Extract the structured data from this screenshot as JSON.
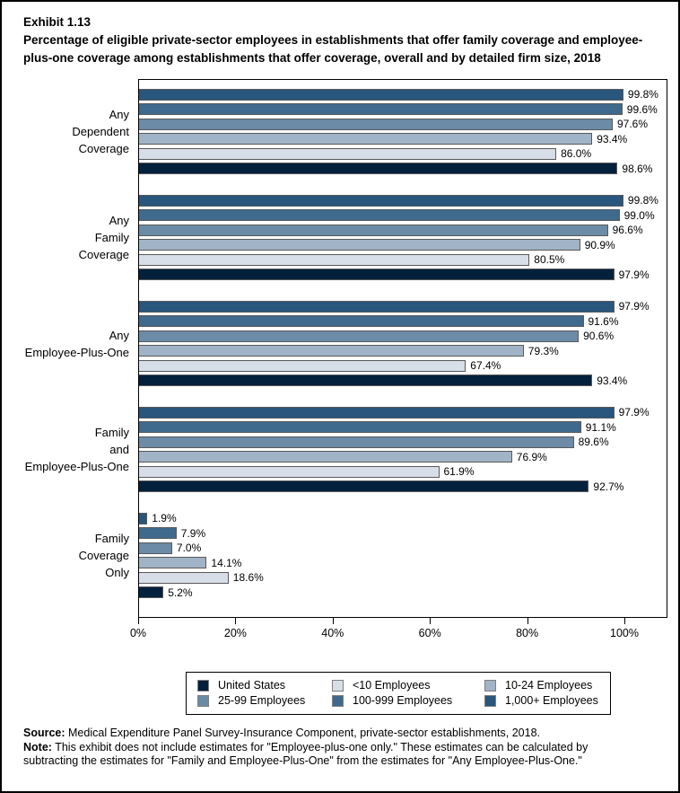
{
  "header": {
    "exhibit": "Exhibit 1.13",
    "title": "Percentage of eligible private-sector employees in establishments that offer family coverage and employee-plus-one coverage among establishments that offer coverage, overall and by detailed firm size, 2018"
  },
  "chart_data": {
    "type": "bar",
    "orientation": "horizontal",
    "title": "Percentage of eligible private-sector employees in establishments that offer family coverage and employee-plus-one coverage among establishments that offer coverage, overall and by detailed firm size, 2018",
    "categories": [
      "Any Dependent Coverage",
      "Any Family Coverage",
      "Any Employee-Plus-One",
      "Family and Employee-Plus-One",
      "Family Coverage Only"
    ],
    "category_label_lines": [
      [
        "Any",
        "Dependent",
        "Coverage"
      ],
      [
        "Any",
        "Family",
        "Coverage"
      ],
      [
        "Any",
        "Employee-Plus-One"
      ],
      [
        "Family",
        "and",
        "Employee-Plus-One"
      ],
      [
        "Family",
        "Coverage",
        "Only"
      ]
    ],
    "series": [
      {
        "name": "1,000+ Employees",
        "color": "#28567D",
        "values": [
          99.8,
          99.8,
          97.9,
          97.9,
          1.9
        ]
      },
      {
        "name": "100-999 Employees",
        "color": "#3F6A8D",
        "values": [
          99.6,
          99.0,
          91.6,
          91.1,
          7.9
        ]
      },
      {
        "name": "25-99 Employees",
        "color": "#6B8BA7",
        "values": [
          97.6,
          96.6,
          90.6,
          89.6,
          7.0
        ]
      },
      {
        "name": "10-24 Employees",
        "color": "#A1B3C6",
        "values": [
          93.4,
          90.9,
          79.3,
          76.9,
          14.1
        ]
      },
      {
        "name": "<10 Employees",
        "color": "#D8DEE7",
        "values": [
          86.0,
          80.5,
          67.4,
          61.9,
          18.6
        ]
      },
      {
        "name": "United States",
        "color": "#03203C",
        "values": [
          98.6,
          97.9,
          93.4,
          92.7,
          5.2
        ]
      }
    ],
    "x_ticks": [
      "0%",
      "20%",
      "40%",
      "60%",
      "80%",
      "100%"
    ],
    "xlim": [
      0,
      108.8
    ],
    "grid": false,
    "value_label_format": "#.#%",
    "legend": {
      "position": "bottom",
      "order": [
        "United States",
        "<10 Employees",
        "10-24 Employees",
        "25-99 Employees",
        "100-999 Employees",
        "1,000+ Employees"
      ]
    }
  },
  "footnotes": {
    "source_label": "Source:",
    "source_text": " Medical Expenditure Panel Survey-Insurance Component, private-sector establishments, 2018.",
    "note_label": "Note:",
    "note_text": " This exhibit does not include estimates for \"Employee-plus-one only.\" These estimates can be calculated by subtracting the estimates for \"Family and Employee-Plus-One\" from the estimates for \"Any Employee-Plus-One.\""
  }
}
